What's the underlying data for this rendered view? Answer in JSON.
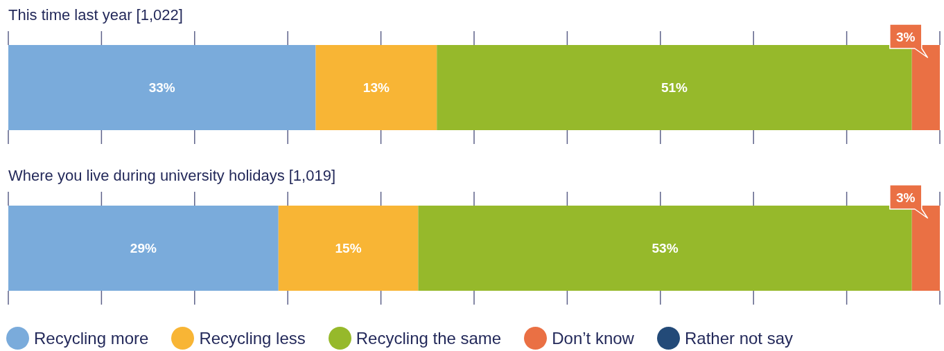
{
  "chart_data": {
    "type": "bar",
    "orientation": "horizontal",
    "stacked": true,
    "categories": [
      "This time last year [1,022]",
      "Where you live during university holidays [1,019]"
    ],
    "series": [
      {
        "name": "Recycling more",
        "color": "#7aabdb",
        "values": [
          33,
          29
        ],
        "value_labels": [
          "33%",
          "29%"
        ]
      },
      {
        "name": "Recycling less",
        "color": "#f8b535",
        "values": [
          13,
          15
        ],
        "value_labels": [
          "13%",
          "15%"
        ]
      },
      {
        "name": "Recycling the same",
        "color": "#96b92b",
        "values": [
          51,
          53
        ],
        "value_labels": [
          "51%",
          "53%"
        ]
      },
      {
        "name": "Don’t know",
        "color": "#ea7044",
        "values": [
          3,
          3
        ],
        "value_labels": [
          "3%",
          "3%"
        ]
      },
      {
        "name": "Rather not say",
        "color": "#234a78",
        "values": [
          0,
          0
        ],
        "value_labels": [
          null,
          null
        ]
      }
    ],
    "xlim": [
      0,
      100
    ],
    "tick_labels": "y",
    "legend": "bottom"
  }
}
